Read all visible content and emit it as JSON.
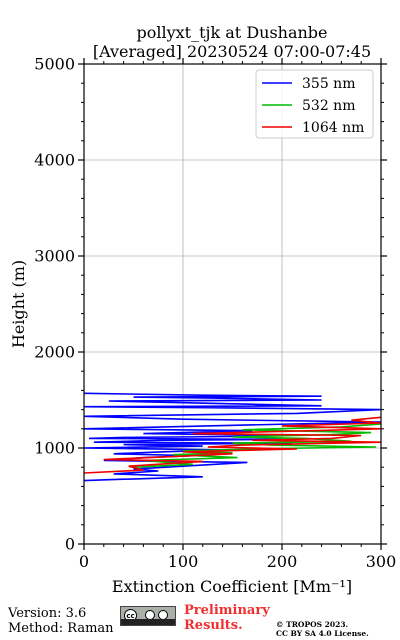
{
  "chart_data": {
    "type": "line",
    "title_line1": "pollyxt_tjk at Dushanbe",
    "title_line2": "[Averaged] 20230524 07:00-07:45",
    "xlabel": "Extinction Coefficient [Mm⁻¹]",
    "ylabel": "Height (m)",
    "xlim": [
      0,
      300
    ],
    "ylim": [
      0,
      5000
    ],
    "xticks": [
      "0",
      "100",
      "200",
      "300"
    ],
    "yticks": [
      "0",
      "1000",
      "2000",
      "3000",
      "4000",
      "5000"
    ],
    "grid": true,
    "legend_position": "top-right",
    "series": [
      {
        "name": "355 nm",
        "color": "#0000ff",
        "points": [
          [
            0,
            660
          ],
          [
            25,
            670
          ],
          [
            120,
            700
          ],
          [
            30,
            730
          ],
          [
            75,
            760
          ],
          [
            50,
            780
          ],
          [
            165,
            850
          ],
          [
            20,
            870
          ],
          [
            60,
            900
          ],
          [
            110,
            920
          ],
          [
            30,
            940
          ],
          [
            80,
            960
          ],
          [
            140,
            980
          ],
          [
            0,
            1000
          ],
          [
            120,
            1020
          ],
          [
            40,
            1035
          ],
          [
            210,
            1050
          ],
          [
            10,
            1060
          ],
          [
            80,
            1080
          ],
          [
            200,
            1090
          ],
          [
            5,
            1100
          ],
          [
            40,
            1110
          ],
          [
            150,
            1120
          ],
          [
            200,
            1130
          ],
          [
            60,
            1150
          ],
          [
            170,
            1180
          ],
          [
            0,
            1200
          ],
          [
            210,
            1250
          ],
          [
            300,
            1270
          ],
          [
            100,
            1300
          ],
          [
            0,
            1330
          ],
          [
            215,
            1360
          ],
          [
            300,
            1400
          ],
          [
            125,
            1420
          ],
          [
            0,
            1430
          ],
          [
            240,
            1440
          ],
          [
            150,
            1460
          ],
          [
            25,
            1490
          ],
          [
            240,
            1500
          ],
          [
            130,
            1520
          ],
          [
            50,
            1530
          ],
          [
            240,
            1540
          ],
          [
            120,
            1550
          ],
          [
            0,
            1570
          ]
        ]
      },
      {
        "name": "532 nm",
        "color": "#00bb00",
        "points": [
          [
            50,
            800
          ],
          [
            110,
            830
          ],
          [
            60,
            870
          ],
          [
            155,
            900
          ],
          [
            90,
            930
          ],
          [
            150,
            950
          ],
          [
            100,
            970
          ],
          [
            170,
            990
          ],
          [
            225,
            1000
          ],
          [
            295,
            1010
          ],
          [
            190,
            1030
          ],
          [
            150,
            1050
          ],
          [
            270,
            1070
          ],
          [
            225,
            1100
          ],
          [
            150,
            1115
          ],
          [
            250,
            1140
          ],
          [
            290,
            1160
          ],
          [
            160,
            1190
          ],
          [
            260,
            1220
          ],
          [
            300,
            1250
          ]
        ]
      },
      {
        "name": "1064 nm",
        "color": "#ee0000",
        "points": [
          [
            0,
            740
          ],
          [
            60,
            770
          ],
          [
            45,
            810
          ],
          [
            120,
            860
          ],
          [
            20,
            880
          ],
          [
            90,
            910
          ],
          [
            150,
            940
          ],
          [
            100,
            960
          ],
          [
            215,
            990
          ],
          [
            125,
            1010
          ],
          [
            160,
            1030
          ],
          [
            300,
            1060
          ],
          [
            170,
            1080
          ],
          [
            250,
            1100
          ],
          [
            280,
            1130
          ],
          [
            110,
            1150
          ],
          [
            230,
            1180
          ],
          [
            300,
            1200
          ],
          [
            200,
            1230
          ],
          [
            300,
            1260
          ],
          [
            270,
            1290
          ],
          [
            300,
            1320
          ]
        ]
      }
    ]
  },
  "footer": {
    "version": "Version: 3.6",
    "method": "Method: Raman",
    "cc_label": "cc",
    "preliminary_1": "Preliminary",
    "preliminary_2": "Results.",
    "copyright_1": "© TROPOS 2023.",
    "copyright_2": "CC BY SA 4.0 License."
  }
}
